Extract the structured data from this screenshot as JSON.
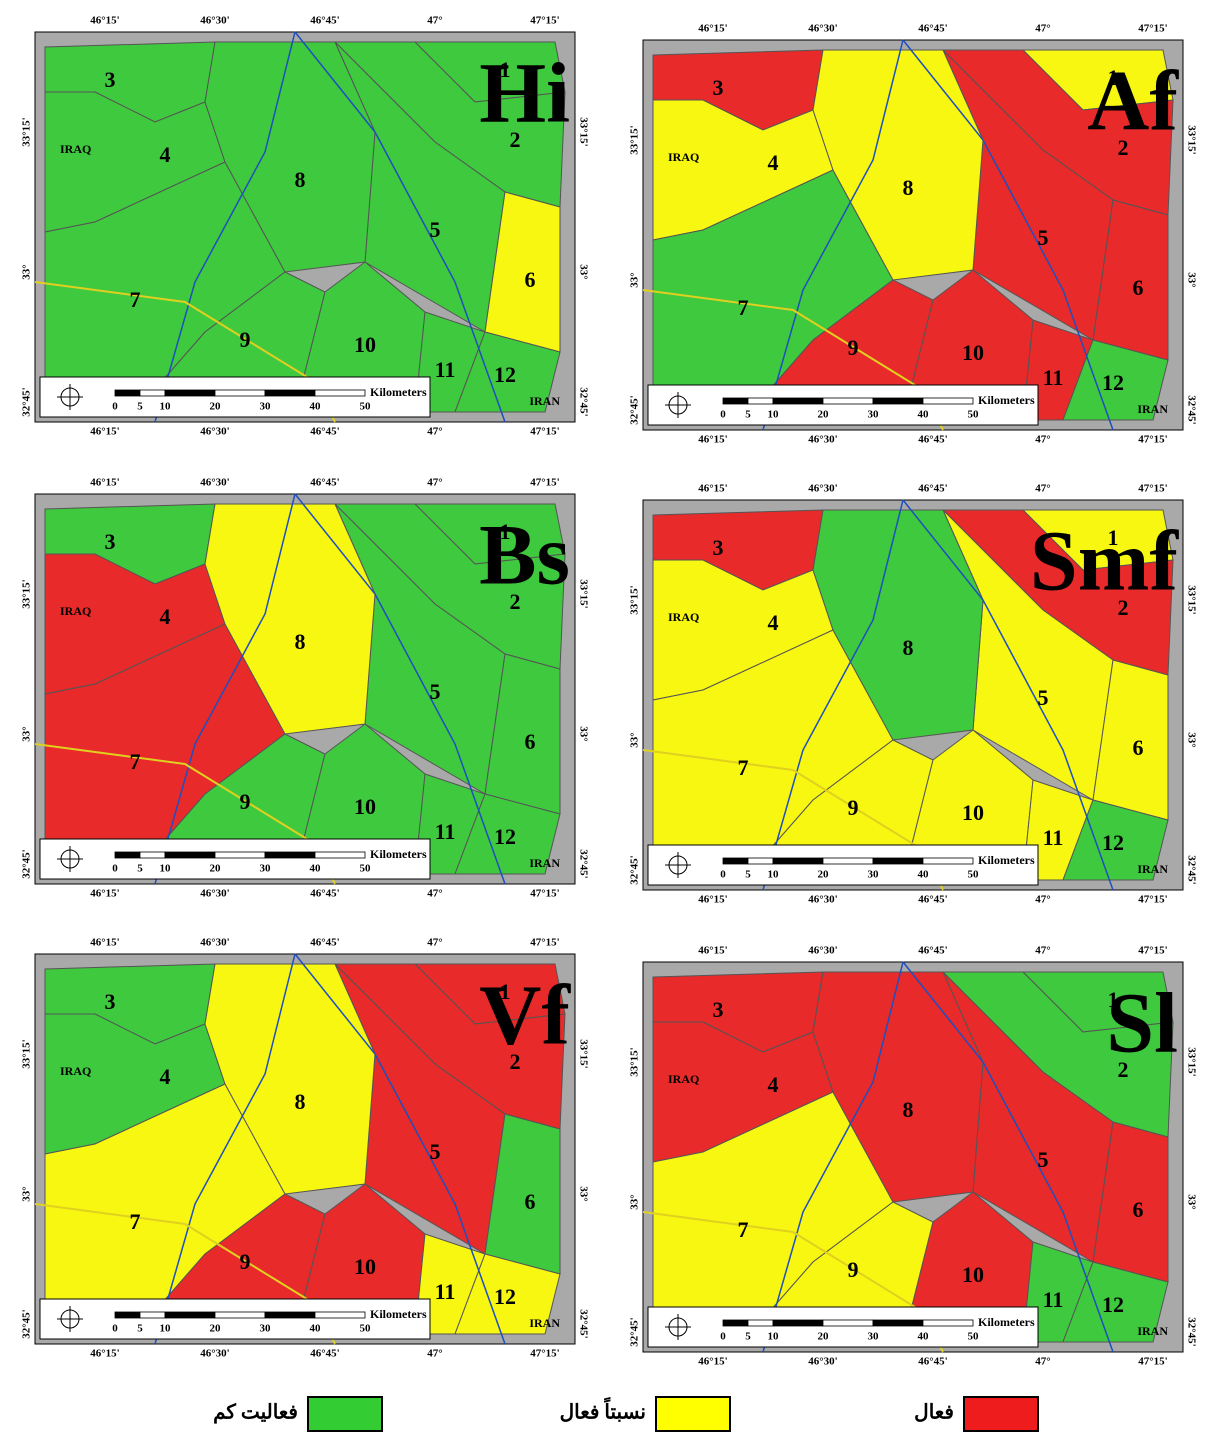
{
  "legend": [
    {
      "label": "فعالیت کم",
      "color": "#33cc33"
    },
    {
      "label": "نسبتاً فعال",
      "color": "#ffff00"
    },
    {
      "label": "فعال",
      "color": "#ee1c1c"
    }
  ],
  "lon_labels": [
    "46°15'",
    "46°30'",
    "46°45'",
    "47°",
    "47°15'"
  ],
  "lat_labels": [
    "33°15'",
    "33°",
    "32°45'"
  ],
  "scale": {
    "unit": "Kilometers",
    "labels": [
      "0",
      "5",
      "10",
      "20",
      "30",
      "40",
      "50"
    ]
  },
  "countries": [
    "IRAQ",
    "IRAN"
  ],
  "panels": [
    {
      "title": "Hi",
      "basins": [
        {
          "label": "1",
          "class": 0
        },
        {
          "label": "2",
          "class": 0
        },
        {
          "label": "3",
          "class": 0
        },
        {
          "label": "4",
          "class": 0
        },
        {
          "label": "5",
          "class": 0
        },
        {
          "label": "6",
          "class": 1
        },
        {
          "label": "7",
          "class": 0
        },
        {
          "label": "8",
          "class": 0
        },
        {
          "label": "9",
          "class": 0
        },
        {
          "label": "10",
          "class": 0
        },
        {
          "label": "11",
          "class": 0
        },
        {
          "label": "12",
          "class": 0
        }
      ]
    },
    {
      "title": "Af",
      "basins": [
        {
          "label": "1",
          "class": 1
        },
        {
          "label": "2",
          "class": 2
        },
        {
          "label": "3",
          "class": 2
        },
        {
          "label": "4",
          "class": 1
        },
        {
          "label": "5",
          "class": 2
        },
        {
          "label": "6",
          "class": 2
        },
        {
          "label": "7",
          "class": 0
        },
        {
          "label": "8",
          "class": 1
        },
        {
          "label": "9",
          "class": 2
        },
        {
          "label": "10",
          "class": 2
        },
        {
          "label": "11",
          "class": 2
        },
        {
          "label": "12",
          "class": 0
        }
      ]
    },
    {
      "title": "Bs",
      "basins": [
        {
          "label": "1",
          "class": 0
        },
        {
          "label": "2",
          "class": 0
        },
        {
          "label": "3",
          "class": 0
        },
        {
          "label": "4",
          "class": 2
        },
        {
          "label": "5",
          "class": 0
        },
        {
          "label": "6",
          "class": 0
        },
        {
          "label": "7",
          "class": 2
        },
        {
          "label": "8",
          "class": 1
        },
        {
          "label": "9",
          "class": 0
        },
        {
          "label": "10",
          "class": 0
        },
        {
          "label": "11",
          "class": 0
        },
        {
          "label": "12",
          "class": 0
        }
      ]
    },
    {
      "title": "Smf",
      "basins": [
        {
          "label": "1",
          "class": 1
        },
        {
          "label": "2",
          "class": 2
        },
        {
          "label": "3",
          "class": 2
        },
        {
          "label": "4",
          "class": 1
        },
        {
          "label": "5",
          "class": 1
        },
        {
          "label": "6",
          "class": 1
        },
        {
          "label": "7",
          "class": 1
        },
        {
          "label": "8",
          "class": 0
        },
        {
          "label": "9",
          "class": 1
        },
        {
          "label": "10",
          "class": 1
        },
        {
          "label": "11",
          "class": 1
        },
        {
          "label": "12",
          "class": 0
        }
      ]
    },
    {
      "title": "Vf",
      "basins": [
        {
          "label": "1",
          "class": 2
        },
        {
          "label": "2",
          "class": 2
        },
        {
          "label": "3",
          "class": 0
        },
        {
          "label": "4",
          "class": 0
        },
        {
          "label": "5",
          "class": 2
        },
        {
          "label": "6",
          "class": 0
        },
        {
          "label": "7",
          "class": 1
        },
        {
          "label": "8",
          "class": 1
        },
        {
          "label": "9",
          "class": 2
        },
        {
          "label": "10",
          "class": 2
        },
        {
          "label": "11",
          "class": 1
        },
        {
          "label": "12",
          "class": 1
        }
      ]
    },
    {
      "title": "Sl",
      "basins": [
        {
          "label": "1",
          "class": 0
        },
        {
          "label": "2",
          "class": 0
        },
        {
          "label": "3",
          "class": 2
        },
        {
          "label": "4",
          "class": 2
        },
        {
          "label": "5",
          "class": 2
        },
        {
          "label": "6",
          "class": 2
        },
        {
          "label": "7",
          "class": 1
        },
        {
          "label": "8",
          "class": 2
        },
        {
          "label": "9",
          "class": 1
        },
        {
          "label": "10",
          "class": 2
        },
        {
          "label": "11",
          "class": 0
        },
        {
          "label": "12",
          "class": 0
        }
      ]
    }
  ]
}
